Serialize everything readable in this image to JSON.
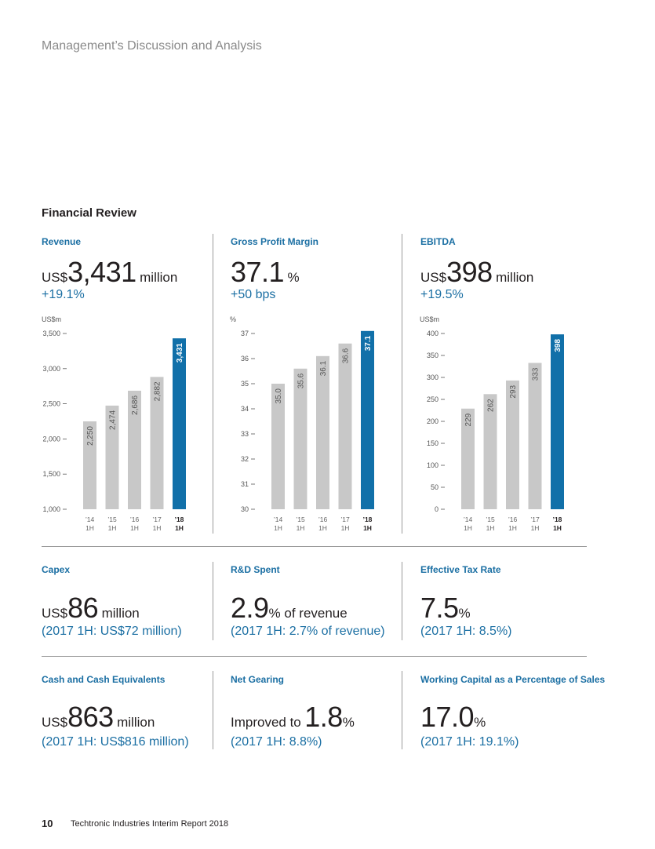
{
  "header": "Management’s Discussion and Analysis",
  "section_title": "Financial Review",
  "colors": {
    "accent": "#1b6fa3",
    "bar_grey": "#c8c8c8",
    "bar_highlight": "#1170a9",
    "text": "#231f20"
  },
  "kpis": {
    "revenue": {
      "title": "Revenue",
      "prefix": "US$",
      "value": "3,431",
      "suffix": "million",
      "sub": "+19.1%"
    },
    "gpm": {
      "title": "Gross Profit Margin",
      "prefix": "",
      "value": "37.1",
      "suffix": "%",
      "sub": "+50 bps"
    },
    "ebitda": {
      "title": "EBITDA",
      "prefix": "US$",
      "value": "398",
      "suffix": "million",
      "sub": "+19.5%"
    },
    "capex": {
      "title": "Capex",
      "prefix": "US$",
      "value": "86",
      "suffix": "million",
      "sub": "(2017 1H: US$72 million)"
    },
    "rnd": {
      "title": "R&D Spent",
      "prefix": "",
      "value": "2.9",
      "suffix": "% of revenue",
      "sub": "(2017 1H: 2.7% of revenue)"
    },
    "tax": {
      "title": "Effective Tax Rate",
      "prefix": "",
      "value": "7.5",
      "suffix": "%",
      "sub": "(2017 1H: 8.5%)"
    },
    "cash": {
      "title": "Cash and Cash Equivalents",
      "prefix": "US$",
      "value": "863",
      "suffix": "million",
      "sub": "(2017 1H: US$816 million)"
    },
    "gearing": {
      "title": "Net Gearing",
      "prefix": "Improved to",
      "value": "1.8",
      "suffix": "%",
      "sub": "(2017 1H: 8.8%)"
    },
    "wc": {
      "title": "Working Capital as a Percentage of Sales",
      "prefix": "",
      "value": "17.0",
      "suffix": "%",
      "sub": "(2017 1H: 19.1%)"
    }
  },
  "chart_data": [
    {
      "type": "bar",
      "unit": "US$m",
      "categories": [
        [
          "’14",
          "1H"
        ],
        [
          "’15",
          "1H"
        ],
        [
          "’16",
          "1H"
        ],
        [
          "’17",
          "1H"
        ],
        [
          "’18",
          "1H"
        ]
      ],
      "values": [
        2250,
        2474,
        2686,
        2882,
        3431
      ],
      "value_labels": [
        "2,250",
        "2,474",
        "2,686",
        "2,882",
        "3,431"
      ],
      "ylim": [
        1000,
        3500
      ],
      "yticks": [
        1000,
        1500,
        2000,
        2500,
        3000,
        3500
      ],
      "ytick_labels": [
        "1,000",
        "1,500",
        "2,000",
        "2,500",
        "3,000",
        "3,500"
      ],
      "highlight_index": 4
    },
    {
      "type": "bar",
      "unit": "%",
      "categories": [
        [
          "’14",
          "1H"
        ],
        [
          "’15",
          "1H"
        ],
        [
          "’16",
          "1H"
        ],
        [
          "’17",
          "1H"
        ],
        [
          "’18",
          "1H"
        ]
      ],
      "values": [
        35.0,
        35.6,
        36.1,
        36.6,
        37.1
      ],
      "value_labels": [
        "35.0",
        "35.6",
        "36.1",
        "36.6",
        "37.1"
      ],
      "ylim": [
        30,
        37
      ],
      "yticks": [
        30,
        31,
        32,
        33,
        34,
        35,
        36,
        37
      ],
      "ytick_labels": [
        "30",
        "31",
        "32",
        "33",
        "34",
        "35",
        "36",
        "37"
      ],
      "highlight_index": 4
    },
    {
      "type": "bar",
      "unit": "US$m",
      "categories": [
        [
          "’14",
          "1H"
        ],
        [
          "’15",
          "1H"
        ],
        [
          "’16",
          "1H"
        ],
        [
          "’17",
          "1H"
        ],
        [
          "’18",
          "1H"
        ]
      ],
      "values": [
        229,
        262,
        293,
        333,
        398
      ],
      "value_labels": [
        "229",
        "262",
        "293",
        "333",
        "398"
      ],
      "ylim": [
        0,
        400
      ],
      "yticks": [
        0,
        50,
        100,
        150,
        200,
        250,
        300,
        350,
        400
      ],
      "ytick_labels": [
        "0",
        "50",
        "100",
        "150",
        "200",
        "250",
        "300",
        "350",
        "400"
      ],
      "highlight_index": 4
    }
  ],
  "footer": {
    "page_number": "10",
    "text": "Techtronic Industries Interim Report 2018"
  }
}
